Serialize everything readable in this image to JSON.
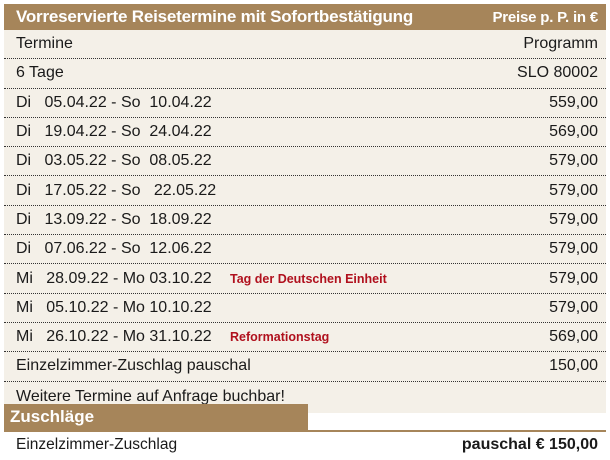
{
  "header": {
    "title": "Vorreservierte Reisetermine mit Sofortbestätigung",
    "price_note": "Preise p. P. in €"
  },
  "table": {
    "col_left": "Termine",
    "col_right": "Programm",
    "duration": "6 Tage",
    "program_code": "SLO 80002",
    "dates": [
      {
        "date": "Di   05.04.22 - So  10.04.22",
        "note": "",
        "price": "559,00"
      },
      {
        "date": "Di   19.04.22 - So  24.04.22",
        "note": "",
        "price": "569,00"
      },
      {
        "date": "Di   03.05.22 - So  08.05.22",
        "note": "",
        "price": "579,00"
      },
      {
        "date": "Di   17.05.22 - So   22.05.22",
        "note": "",
        "price": "579,00"
      },
      {
        "date": "Di   13.09.22 - So  18.09.22",
        "note": "",
        "price": "579,00"
      },
      {
        "date": "Di   07.06.22 - So  12.06.22",
        "note": "",
        "price": "579,00"
      },
      {
        "date": "Mi   28.09.22 - Mo 03.10.22",
        "note": "Tag der Deutschen Einheit",
        "price": "579,00"
      },
      {
        "date": "Mi   05.10.22 - Mo 10.10.22",
        "note": "",
        "price": "579,00"
      },
      {
        "date": "Mi   26.10.22 - Mo 31.10.22",
        "note": "Reformationstag",
        "price": "569,00"
      }
    ],
    "single_room_label": "Einzelzimmer-Zuschlag pauschal",
    "single_room_price": "150,00",
    "more_dates": "Weitere Termine auf Anfrage buchbar!"
  },
  "surcharges": {
    "title": "Zuschläge",
    "item_label": "Einzelzimmer-Zuschlag",
    "item_price": "pauschal € 150,00"
  },
  "colors": {
    "header_bg": "#a6855a",
    "table_bg": "#f4f0e8",
    "note_red": "#b0101d"
  }
}
